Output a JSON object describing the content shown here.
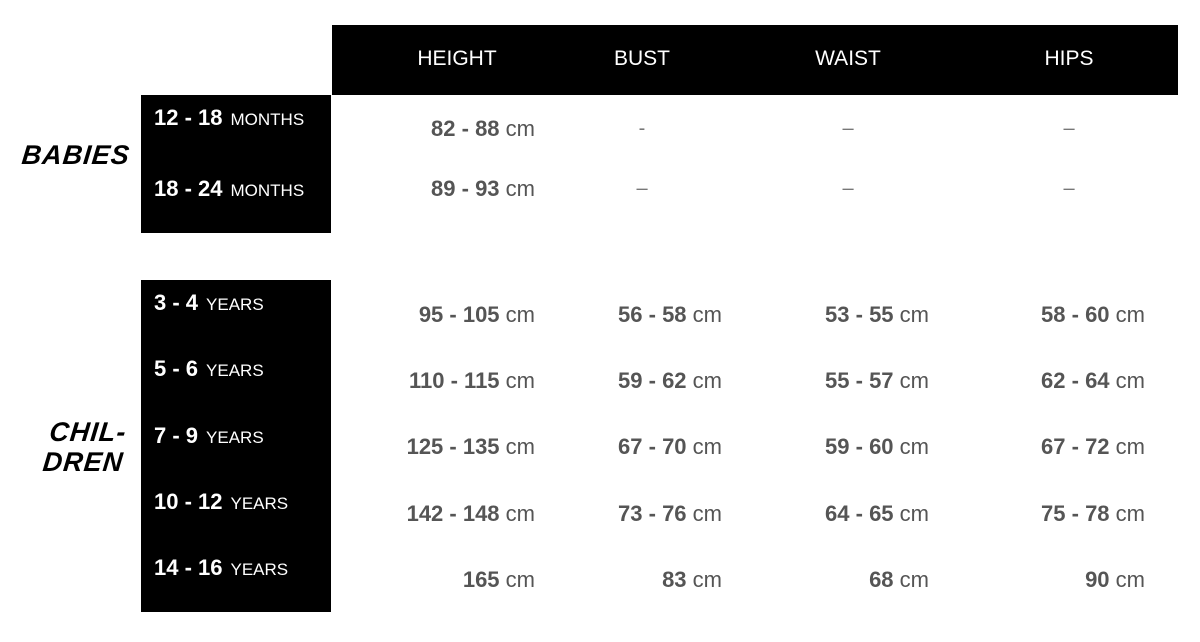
{
  "headers": [
    "HEIGHT",
    "BUST",
    "WAIST",
    "HIPS"
  ],
  "groups": {
    "babies": {
      "label": "BABIES",
      "rows": [
        {
          "range": "12 - 18",
          "unit": "MONTHS",
          "height": "82 - 88",
          "bust": "-",
          "waist": "–",
          "hips": "–"
        },
        {
          "range": "18 - 24",
          "unit": "MONTHS",
          "height": "89 - 93",
          "bust": "–",
          "waist": "–",
          "hips": "–"
        }
      ]
    },
    "children": {
      "label_line1": "CHIL-",
      "label_line2": "DREN",
      "rows": [
        {
          "range": "3 - 4",
          "unit": "YEARS",
          "height": "95 - 105",
          "bust": "56 - 58",
          "waist": "53 - 55",
          "hips": "58 - 60"
        },
        {
          "range": "5 - 6",
          "unit": "YEARS",
          "height": "110 - 115",
          "bust": "59 - 62",
          "waist": "55 - 57",
          "hips": "62 - 64"
        },
        {
          "range": "7 - 9",
          "unit": "YEARS",
          "height": "125 - 135",
          "bust": "67 - 70",
          "waist": "59 - 60",
          "hips": "67 - 72"
        },
        {
          "range": "10 - 12",
          "unit": "YEARS",
          "height": "142 - 148",
          "bust": "73 - 76",
          "waist": "64 - 65",
          "hips": "75 - 78"
        },
        {
          "range": "14 - 16",
          "unit": "YEARS",
          "height": "165",
          "bust": "83",
          "waist": "68",
          "hips": "90"
        }
      ]
    }
  },
  "unit_cm": "cm"
}
